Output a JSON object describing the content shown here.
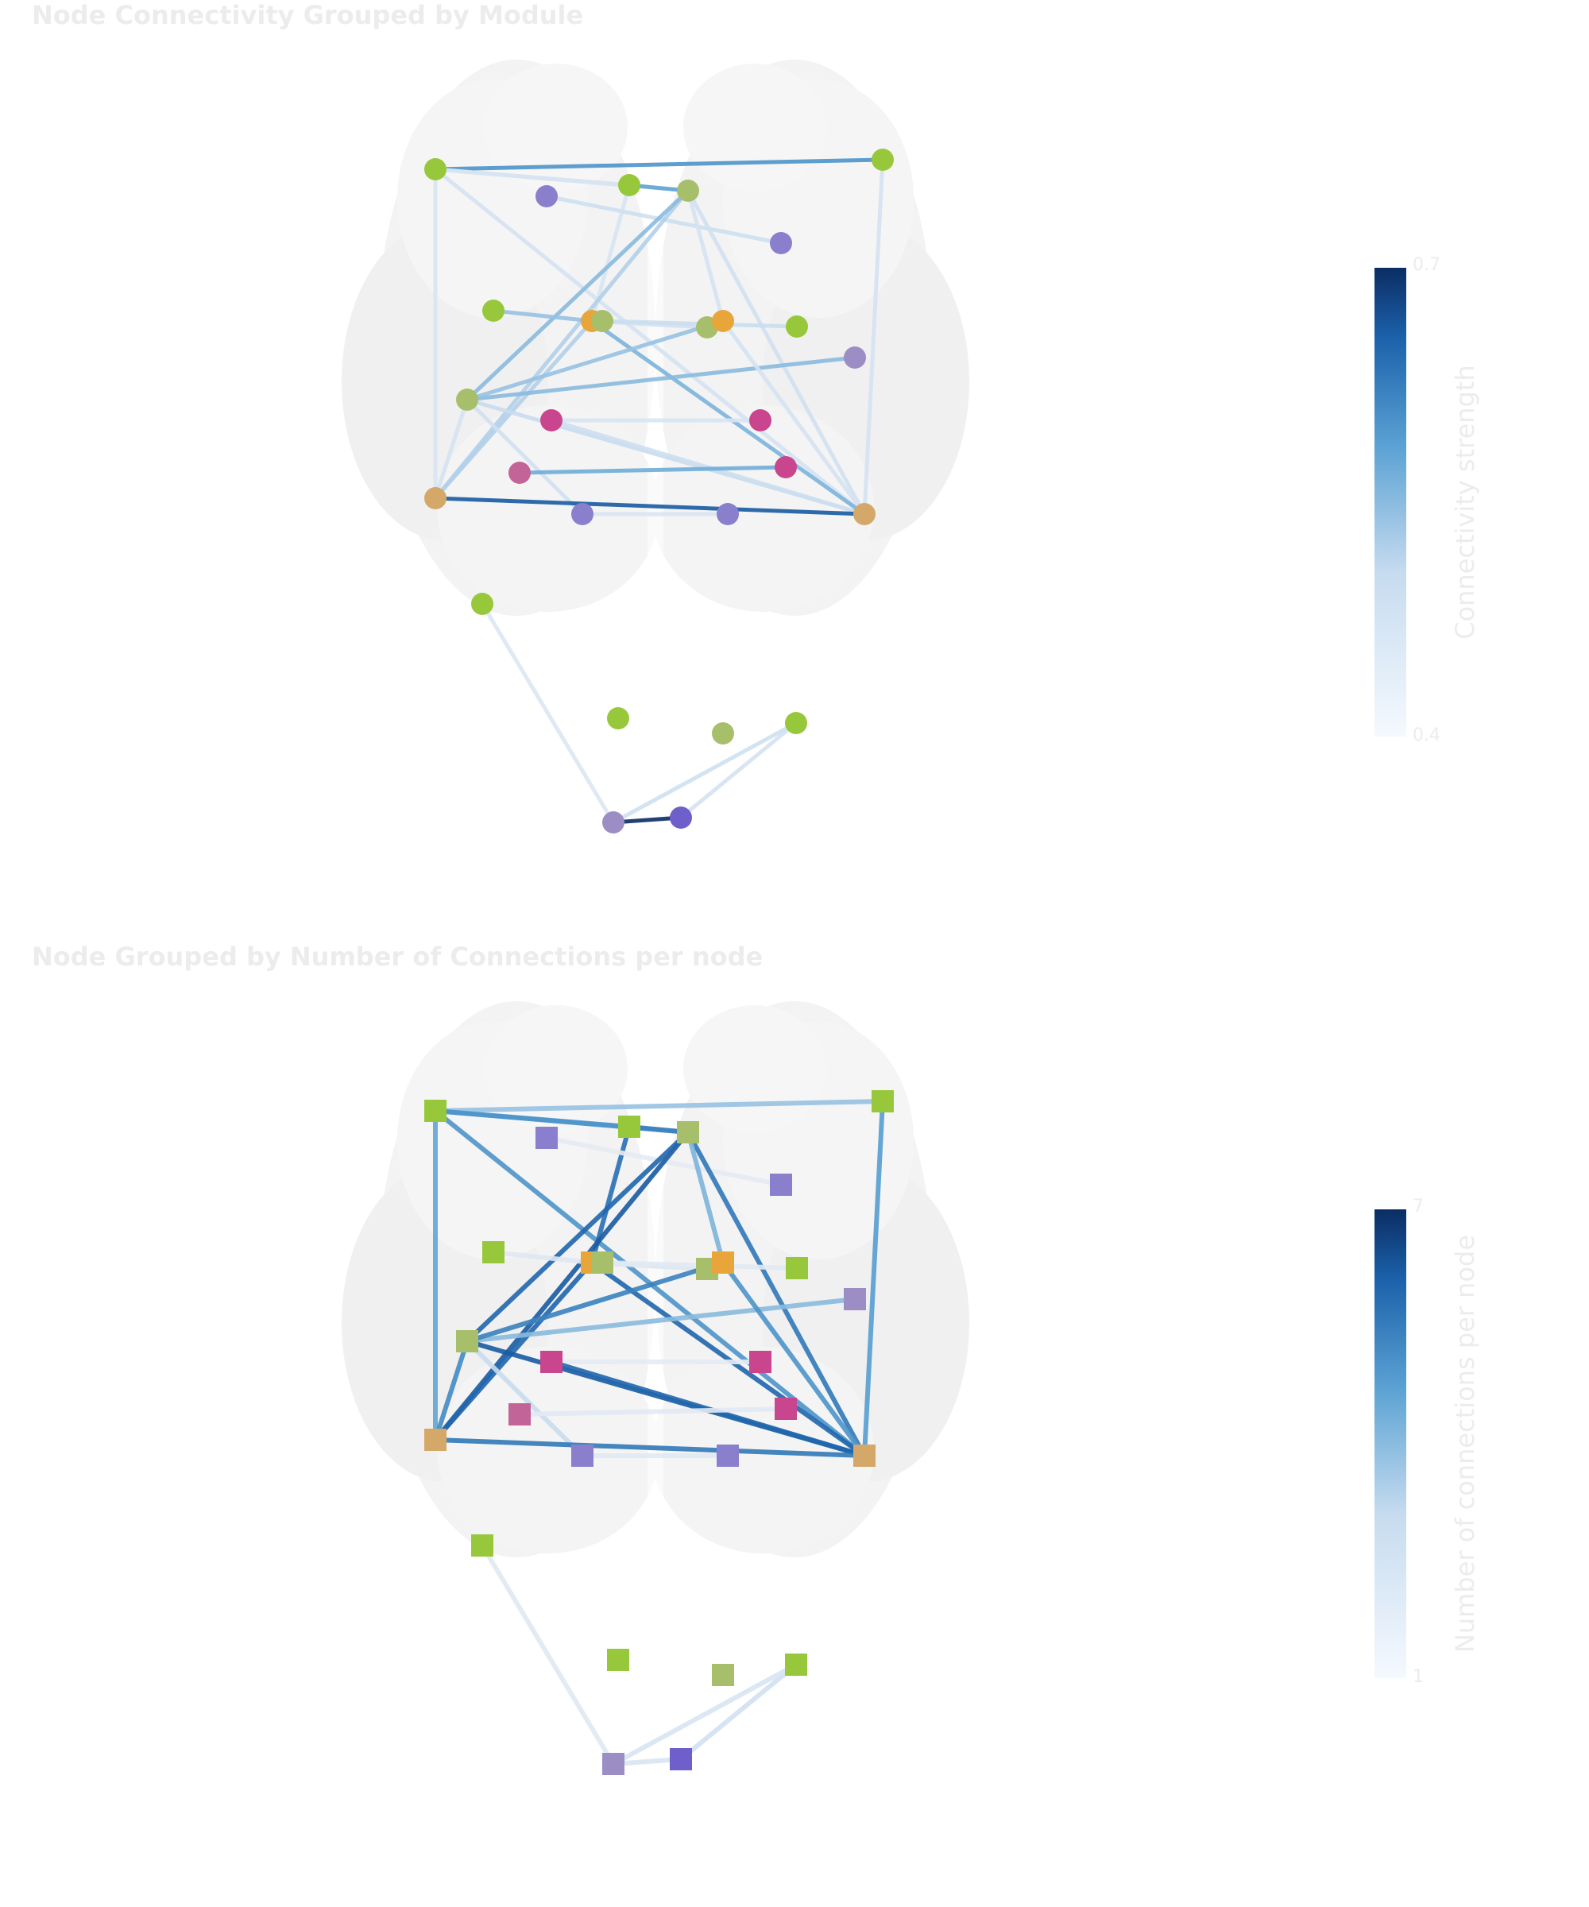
{
  "panels": [
    {
      "title": "Node Connectivity Grouped by Module",
      "marker": "circle",
      "colorbar": {
        "label": "Connectivity strength",
        "tick_max": "0.7",
        "tick_min": "0.4"
      }
    },
    {
      "title": "Node Grouped by Number of Connections per node",
      "marker": "square",
      "colorbar": {
        "label": "Number of connections per node",
        "tick_max": "7",
        "tick_min": "1"
      }
    }
  ],
  "colors": {
    "title_text": "#ececec",
    "brain_fill": "#f3f3f3",
    "module_green": "#97c83c",
    "module_sage": "#a7bf6a",
    "module_purple": "#8a7fcc",
    "module_orange": "#e8a63a",
    "module_tan": "#d4a868",
    "module_magenta": "#c9458e",
    "module_mauve": "#c26498",
    "module_violet": "#6f5fcb",
    "module_slate": "#9c8ec4",
    "scale_low": "#f5f9ff",
    "scale_mid": "#5aa2d3",
    "scale_high": "#0b2d63"
  },
  "chart_data": {
    "type": "network",
    "nodes": [
      {
        "id": "N1",
        "module_color": "module_green"
      },
      {
        "id": "N2",
        "module_color": "module_purple"
      },
      {
        "id": "N3",
        "module_color": "module_green"
      },
      {
        "id": "N4",
        "module_color": "module_sage"
      },
      {
        "id": "N5",
        "module_color": "module_green"
      },
      {
        "id": "N6",
        "module_color": "module_purple"
      },
      {
        "id": "N7",
        "module_color": "module_green"
      },
      {
        "id": "N8",
        "module_color": "module_orange"
      },
      {
        "id": "N9",
        "module_color": "module_sage"
      },
      {
        "id": "N10",
        "module_color": "module_sage"
      },
      {
        "id": "N11",
        "module_color": "module_orange"
      },
      {
        "id": "N12",
        "module_color": "module_green"
      },
      {
        "id": "N13",
        "module_color": "module_slate"
      },
      {
        "id": "N14",
        "module_color": "module_sage"
      },
      {
        "id": "N15",
        "module_color": "module_magenta"
      },
      {
        "id": "N16",
        "module_color": "module_magenta"
      },
      {
        "id": "N17",
        "module_color": "module_mauve"
      },
      {
        "id": "N18",
        "module_color": "module_magenta"
      },
      {
        "id": "N19",
        "module_color": "module_tan"
      },
      {
        "id": "N20",
        "module_color": "module_purple"
      },
      {
        "id": "N21",
        "module_color": "module_purple"
      },
      {
        "id": "N22",
        "module_color": "module_tan"
      },
      {
        "id": "N23",
        "module_color": "module_green"
      },
      {
        "id": "N24",
        "module_color": "module_green"
      },
      {
        "id": "N25",
        "module_color": "module_sage"
      },
      {
        "id": "N26",
        "module_color": "module_green"
      },
      {
        "id": "N27",
        "module_color": "module_slate"
      },
      {
        "id": "N28",
        "module_color": "module_violet"
      }
    ],
    "edges_top": [
      {
        "source": "N1",
        "target": "N5",
        "value": 0.6
      },
      {
        "source": "N1",
        "target": "N3",
        "value": 0.47
      },
      {
        "source": "N1",
        "target": "N4",
        "value": 0.45
      },
      {
        "source": "N1",
        "target": "N19",
        "value": 0.45
      },
      {
        "source": "N1",
        "target": "N22",
        "value": 0.46
      },
      {
        "source": "N3",
        "target": "N4",
        "value": 0.58
      },
      {
        "source": "N3",
        "target": "N8",
        "value": 0.45
      },
      {
        "source": "N2",
        "target": "N6",
        "value": 0.48
      },
      {
        "source": "N4",
        "target": "N19",
        "value": 0.52
      },
      {
        "source": "N4",
        "target": "N14",
        "value": 0.55
      },
      {
        "source": "N4",
        "target": "N22",
        "value": 0.47
      },
      {
        "source": "N4",
        "target": "N11",
        "value": 0.46
      },
      {
        "source": "N5",
        "target": "N22",
        "value": 0.46
      },
      {
        "source": "N7",
        "target": "N8",
        "value": 0.54
      },
      {
        "source": "N8",
        "target": "N19",
        "value": 0.52
      },
      {
        "source": "N8",
        "target": "N10",
        "value": 0.47
      },
      {
        "source": "N8",
        "target": "N22",
        "value": 0.56
      },
      {
        "source": "N9",
        "target": "N12",
        "value": 0.49
      },
      {
        "source": "N14",
        "target": "N13",
        "value": 0.55
      },
      {
        "source": "N14",
        "target": "N19",
        "value": 0.46
      },
      {
        "source": "N14",
        "target": "N20",
        "value": 0.47
      },
      {
        "source": "N14",
        "target": "N11",
        "value": 0.54
      },
      {
        "source": "N14",
        "target": "N22",
        "value": 0.5
      },
      {
        "source": "N15",
        "target": "N16",
        "value": 0.45
      },
      {
        "source": "N15",
        "target": "N22",
        "value": 0.48
      },
      {
        "source": "N17",
        "target": "N18",
        "value": 0.57
      },
      {
        "source": "N19",
        "target": "N22",
        "value": 0.66
      },
      {
        "source": "N20",
        "target": "N21",
        "value": 0.45
      },
      {
        "source": "N11",
        "target": "N22",
        "value": 0.46
      },
      {
        "source": "N23",
        "target": "N27",
        "value": 0.44
      },
      {
        "source": "N27",
        "target": "N28",
        "value": 0.7
      },
      {
        "source": "N26",
        "target": "N28",
        "value": 0.46
      },
      {
        "source": "N26",
        "target": "N27",
        "value": 0.48
      }
    ],
    "edges_bottom": [
      {
        "source": "N1",
        "target": "N5",
        "value": 3.8
      },
      {
        "source": "N1",
        "target": "N3",
        "value": 4.8
      },
      {
        "source": "N1",
        "target": "N4",
        "value": 5.0
      },
      {
        "source": "N1",
        "target": "N19",
        "value": 4.6
      },
      {
        "source": "N1",
        "target": "N22",
        "value": 5.0
      },
      {
        "source": "N3",
        "target": "N4",
        "value": 5.4
      },
      {
        "source": "N3",
        "target": "N8",
        "value": 5.8
      },
      {
        "source": "N2",
        "target": "N6",
        "value": 1.2
      },
      {
        "source": "N4",
        "target": "N19",
        "value": 6.2
      },
      {
        "source": "N4",
        "target": "N14",
        "value": 6.0
      },
      {
        "source": "N4",
        "target": "N22",
        "value": 5.6
      },
      {
        "source": "N4",
        "target": "N11",
        "value": 4.2
      },
      {
        "source": "N5",
        "target": "N22",
        "value": 4.8
      },
      {
        "source": "N7",
        "target": "N8",
        "value": 1.6
      },
      {
        "source": "N8",
        "target": "N19",
        "value": 6.0
      },
      {
        "source": "N8",
        "target": "N10",
        "value": 1.8
      },
      {
        "source": "N8",
        "target": "N22",
        "value": 6.0
      },
      {
        "source": "N9",
        "target": "N12",
        "value": 1.4
      },
      {
        "source": "N14",
        "target": "N13",
        "value": 4.0
      },
      {
        "source": "N14",
        "target": "N19",
        "value": 5.2
      },
      {
        "source": "N14",
        "target": "N20",
        "value": 3.0
      },
      {
        "source": "N14",
        "target": "N11",
        "value": 5.4
      },
      {
        "source": "N14",
        "target": "N22",
        "value": 6.2
      },
      {
        "source": "N15",
        "target": "N16",
        "value": 1.2
      },
      {
        "source": "N15",
        "target": "N22",
        "value": 6.0
      },
      {
        "source": "N17",
        "target": "N18",
        "value": 1.4
      },
      {
        "source": "N19",
        "target": "N22",
        "value": 5.6
      },
      {
        "source": "N20",
        "target": "N21",
        "value": 1.4
      },
      {
        "source": "N11",
        "target": "N22",
        "value": 5.0
      },
      {
        "source": "N23",
        "target": "N27",
        "value": 1.6
      },
      {
        "source": "N27",
        "target": "N28",
        "value": 2.0
      },
      {
        "source": "N26",
        "target": "N28",
        "value": 2.4
      },
      {
        "source": "N26",
        "target": "N27",
        "value": 2.0
      }
    ]
  }
}
